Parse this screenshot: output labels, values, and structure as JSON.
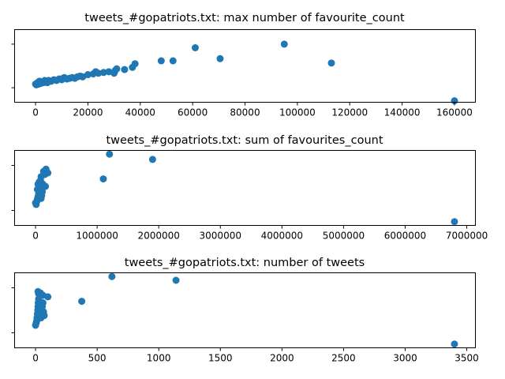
{
  "chart_data": [
    {
      "type": "scatter",
      "title": "tweets_#gopatriots.txt: max number of favourite_count",
      "xlabel": "",
      "ylabel": "",
      "xlim": [
        -8000,
        168000
      ],
      "ylim": [
        0,
        1
      ],
      "xticks": [
        0,
        20000,
        40000,
        60000,
        80000,
        100000,
        120000,
        140000,
        160000
      ],
      "xtick_labels": [
        "0",
        "20000",
        "40000",
        "60000",
        "80000",
        "100000",
        "120000",
        "140000",
        "160000"
      ],
      "yticks": [
        0.2,
        0.8
      ],
      "grid": false,
      "color": "#1f77b4",
      "points": [
        [
          0,
          0.25
        ],
        [
          300,
          0.24
        ],
        [
          500,
          0.26
        ],
        [
          800,
          0.27
        ],
        [
          1200,
          0.25
        ],
        [
          1500,
          0.29
        ],
        [
          2000,
          0.26
        ],
        [
          2500,
          0.28
        ],
        [
          3000,
          0.27
        ],
        [
          3500,
          0.3
        ],
        [
          4000,
          0.29
        ],
        [
          4500,
          0.27
        ],
        [
          5000,
          0.3
        ],
        [
          6000,
          0.29
        ],
        [
          7000,
          0.31
        ],
        [
          8000,
          0.3
        ],
        [
          9000,
          0.32
        ],
        [
          10000,
          0.31
        ],
        [
          10500,
          0.33
        ],
        [
          11000,
          0.34
        ],
        [
          12000,
          0.32
        ],
        [
          13000,
          0.33
        ],
        [
          14000,
          0.34
        ],
        [
          15000,
          0.33
        ],
        [
          16000,
          0.35
        ],
        [
          17000,
          0.36
        ],
        [
          18000,
          0.35
        ],
        [
          20000,
          0.38
        ],
        [
          22000,
          0.39
        ],
        [
          23000,
          0.42
        ],
        [
          24000,
          0.4
        ],
        [
          26000,
          0.41
        ],
        [
          28000,
          0.42
        ],
        [
          30000,
          0.4
        ],
        [
          30500,
          0.44
        ],
        [
          31000,
          0.46
        ],
        [
          34000,
          0.45
        ],
        [
          37000,
          0.48
        ],
        [
          38000,
          0.53
        ],
        [
          48000,
          0.57
        ],
        [
          52500,
          0.57
        ],
        [
          61000,
          0.75
        ],
        [
          70500,
          0.6
        ],
        [
          95000,
          0.8
        ],
        [
          113000,
          0.54
        ],
        [
          160000,
          0.02
        ]
      ]
    },
    {
      "type": "scatter",
      "title": "tweets_#gopatriots.txt: sum of favourites_count",
      "xlabel": "",
      "ylabel": "",
      "xlim": [
        -340000,
        7140000
      ],
      "ylim": [
        0,
        1
      ],
      "xticks": [
        0,
        1000000,
        2000000,
        3000000,
        4000000,
        5000000,
        6000000,
        7000000
      ],
      "xtick_labels": [
        "0",
        "1000000",
        "2000000",
        "3000000",
        "4000000",
        "5000000",
        "6000000",
        "7000000"
      ],
      "yticks": [
        0.2,
        0.8
      ],
      "grid": false,
      "color": "#1f77b4",
      "points": [
        [
          0,
          0.3
        ],
        [
          10000,
          0.28
        ],
        [
          20000,
          0.32
        ],
        [
          30000,
          0.35
        ],
        [
          40000,
          0.38
        ],
        [
          50000,
          0.42
        ],
        [
          60000,
          0.45
        ],
        [
          70000,
          0.5
        ],
        [
          40000,
          0.55
        ],
        [
          80000,
          0.6
        ],
        [
          90000,
          0.65
        ],
        [
          100000,
          0.4
        ],
        [
          110000,
          0.45
        ],
        [
          120000,
          0.55
        ],
        [
          130000,
          0.72
        ],
        [
          150000,
          0.68
        ],
        [
          160000,
          0.52
        ],
        [
          170000,
          0.75
        ],
        [
          200000,
          0.7
        ],
        [
          30000,
          0.48
        ],
        [
          60000,
          0.58
        ],
        [
          90000,
          0.36
        ],
        [
          1100000,
          0.62
        ],
        [
          1200000,
          0.95
        ],
        [
          1900000,
          0.88
        ],
        [
          6800000,
          0.05
        ]
      ]
    },
    {
      "type": "scatter",
      "title": "tweets_#gopatriots.txt: number of tweets",
      "xlabel": "",
      "ylabel": "",
      "xlim": [
        -170,
        3570
      ],
      "ylim": [
        0,
        1
      ],
      "xticks": [
        0,
        500,
        1000,
        1500,
        2000,
        2500,
        3000,
        3500
      ],
      "xtick_labels": [
        "0",
        "500",
        "1000",
        "1500",
        "2000",
        "2500",
        "3000",
        "3500"
      ],
      "yticks": [
        0.2,
        0.8
      ],
      "grid": false,
      "color": "#1f77b4",
      "points": [
        [
          0,
          0.3
        ],
        [
          5,
          0.33
        ],
        [
          10,
          0.36
        ],
        [
          12,
          0.4
        ],
        [
          15,
          0.45
        ],
        [
          18,
          0.5
        ],
        [
          20,
          0.55
        ],
        [
          22,
          0.6
        ],
        [
          25,
          0.65
        ],
        [
          28,
          0.42
        ],
        [
          30,
          0.48
        ],
        [
          35,
          0.52
        ],
        [
          40,
          0.58
        ],
        [
          45,
          0.4
        ],
        [
          50,
          0.44
        ],
        [
          55,
          0.55
        ],
        [
          60,
          0.6
        ],
        [
          65,
          0.48
        ],
        [
          70,
          0.43
        ],
        [
          20,
          0.75
        ],
        [
          25,
          0.72
        ],
        [
          40,
          0.73
        ],
        [
          60,
          0.7
        ],
        [
          100,
          0.68
        ],
        [
          375,
          0.62
        ],
        [
          620,
          0.95
        ],
        [
          1140,
          0.9
        ],
        [
          3400,
          0.05
        ]
      ]
    }
  ]
}
